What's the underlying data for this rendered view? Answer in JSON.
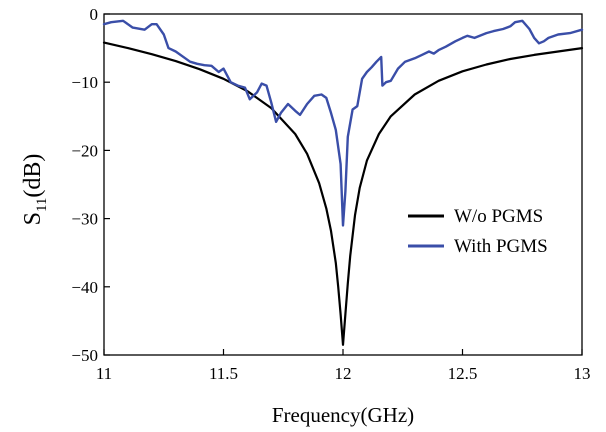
{
  "chart_data": {
    "type": "line",
    "xlabel": "Frequency(GHz)",
    "ylabel": {
      "main": "S",
      "sub": "11",
      "unit": "(dB)"
    },
    "xlim": [
      11,
      13
    ],
    "ylim": [
      -50,
      0
    ],
    "xticks": [
      "11",
      "11.5",
      "12",
      "12.5",
      "13"
    ],
    "yticks": [
      "0",
      "−10",
      "−20",
      "−30",
      "−40",
      "−50"
    ],
    "legend_position": "right-center",
    "series": [
      {
        "name": "W/o PGMS",
        "color": "#000000",
        "x": [
          11.0,
          11.1,
          11.2,
          11.3,
          11.4,
          11.5,
          11.6,
          11.7,
          11.8,
          11.85,
          11.9,
          11.93,
          11.95,
          11.97,
          11.98,
          11.99,
          12.0,
          12.01,
          12.02,
          12.03,
          12.05,
          12.07,
          12.1,
          12.15,
          12.2,
          12.3,
          12.4,
          12.5,
          12.6,
          12.7,
          12.8,
          12.9,
          13.0
        ],
        "y": [
          -4.2,
          -5.0,
          -5.9,
          -6.9,
          -8.1,
          -9.5,
          -11.3,
          -13.8,
          -17.6,
          -20.5,
          -24.8,
          -28.5,
          -31.8,
          -36.5,
          -40.0,
          -44.0,
          -48.5,
          -44.0,
          -39.5,
          -35.5,
          -29.5,
          -25.5,
          -21.5,
          -17.6,
          -15.0,
          -11.8,
          -9.8,
          -8.4,
          -7.4,
          -6.6,
          -6.0,
          -5.5,
          -5.0
        ]
      },
      {
        "name": "With PGMS",
        "color": "#3a4ea8",
        "x": [
          11.0,
          11.03,
          11.08,
          11.12,
          11.17,
          11.2,
          11.22,
          11.25,
          11.27,
          11.3,
          11.34,
          11.36,
          11.39,
          11.42,
          11.45,
          11.48,
          11.5,
          11.53,
          11.56,
          11.59,
          11.61,
          11.64,
          11.66,
          11.68,
          11.7,
          11.72,
          11.74,
          11.77,
          11.8,
          11.82,
          11.85,
          11.88,
          11.91,
          11.93,
          11.95,
          11.97,
          11.99,
          12.0,
          12.01,
          12.02,
          12.04,
          12.06,
          12.08,
          12.1,
          12.12,
          12.14,
          12.16,
          12.165,
          12.18,
          12.2,
          12.23,
          12.26,
          12.3,
          12.33,
          12.36,
          12.38,
          12.4,
          12.43,
          12.47,
          12.5,
          12.52,
          12.55,
          12.6,
          12.63,
          12.67,
          12.7,
          12.72,
          12.75,
          12.78,
          12.8,
          12.82,
          12.84,
          12.86,
          12.9,
          12.95,
          13.0
        ],
        "y": [
          -1.5,
          -1.2,
          -1.0,
          -2.0,
          -2.3,
          -1.5,
          -1.5,
          -3.0,
          -5.0,
          -5.5,
          -6.5,
          -7.0,
          -7.3,
          -7.5,
          -7.6,
          -8.5,
          -8.0,
          -10.0,
          -10.5,
          -10.8,
          -12.5,
          -11.5,
          -10.2,
          -10.5,
          -13.0,
          -15.8,
          -14.5,
          -13.2,
          -14.2,
          -14.8,
          -13.2,
          -12.0,
          -11.8,
          -12.3,
          -14.5,
          -17.0,
          -22.0,
          -31.0,
          -26.0,
          -18.0,
          -14.0,
          -13.5,
          -9.5,
          -8.5,
          -7.8,
          -7.0,
          -6.3,
          -10.5,
          -10.0,
          -9.8,
          -8.0,
          -7.0,
          -6.5,
          -6.0,
          -5.5,
          -5.8,
          -5.3,
          -4.8,
          -4.0,
          -3.5,
          -3.2,
          -3.5,
          -2.8,
          -2.5,
          -2.2,
          -1.8,
          -1.2,
          -1.0,
          -2.2,
          -3.5,
          -4.3,
          -4.0,
          -3.5,
          -3.0,
          -2.8,
          -2.3
        ]
      }
    ]
  }
}
